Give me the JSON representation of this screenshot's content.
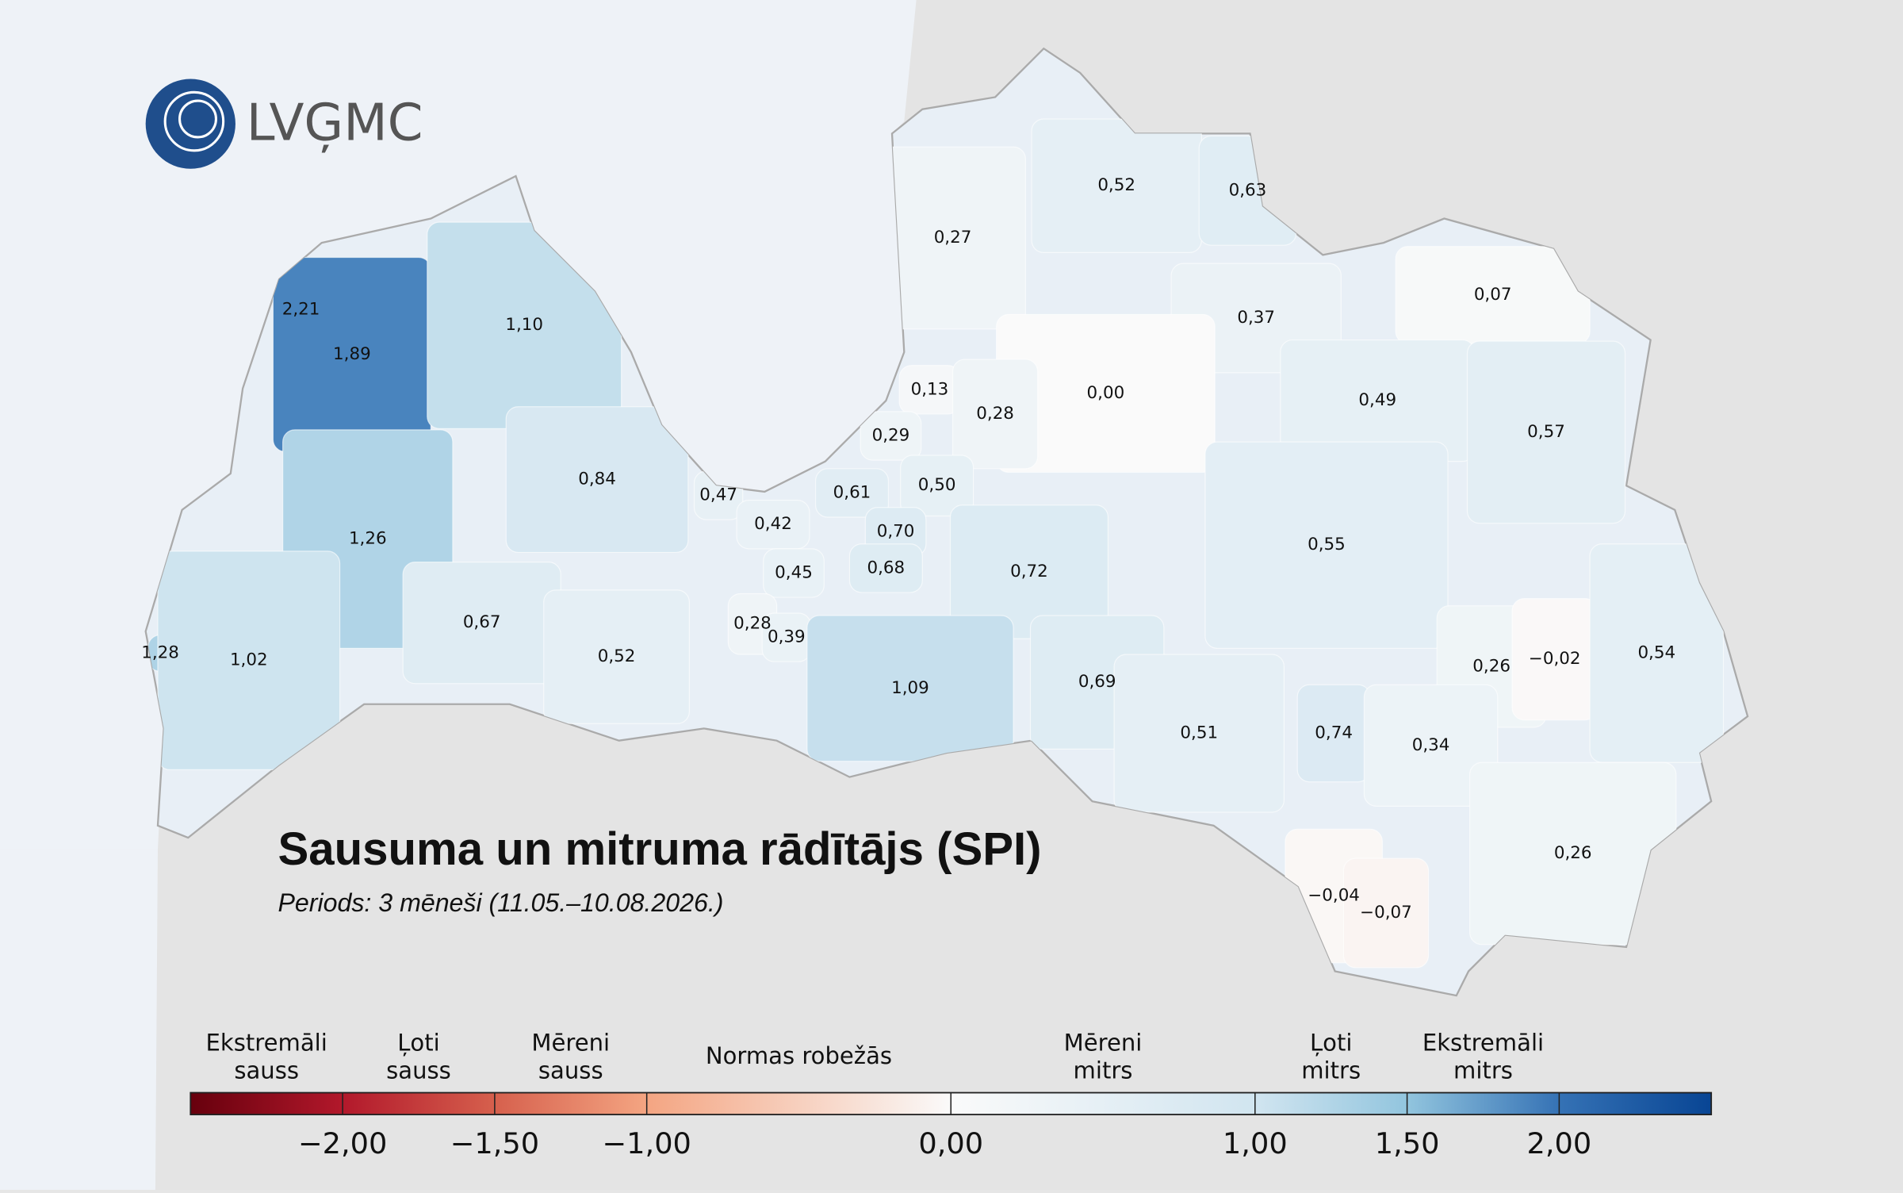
{
  "logo": "LVĢMC",
  "title": "Sausuma un mitruma rādītājs (SPI)",
  "subtitle": "Periods: 3 mēneši (11.05.–10.08.2026.)",
  "regions": [
    {
      "value": 0.52,
      "label": "0,52"
    },
    {
      "value": 0.63,
      "label": "0,63"
    },
    {
      "value": 0.27,
      "label": "0,27"
    },
    {
      "value": 0.07,
      "label": "0,07"
    },
    {
      "value": 0.37,
      "label": "0,37"
    },
    {
      "value": 2.21,
      "label": "2,21"
    },
    {
      "value": 1.89,
      "label": "1,89"
    },
    {
      "value": 1.1,
      "label": "1,10"
    },
    {
      "value": 0.13,
      "label": "0,13"
    },
    {
      "value": 0.0,
      "label": "0,00"
    },
    {
      "value": 0.28,
      "label": "0,28"
    },
    {
      "value": 0.49,
      "label": "0,49"
    },
    {
      "value": 0.57,
      "label": "0,57"
    },
    {
      "value": 0.29,
      "label": "0,29"
    },
    {
      "value": 0.84,
      "label": "0,84"
    },
    {
      "value": 0.47,
      "label": "0,47"
    },
    {
      "value": 0.61,
      "label": "0,61"
    },
    {
      "value": 0.5,
      "label": "0,50"
    },
    {
      "value": 0.42,
      "label": "0,42"
    },
    {
      "value": 0.7,
      "label": "0,70"
    },
    {
      "value": 1.26,
      "label": "1,26"
    },
    {
      "value": 0.55,
      "label": "0,55"
    },
    {
      "value": 0.45,
      "label": "0,45"
    },
    {
      "value": 0.68,
      "label": "0,68"
    },
    {
      "value": 0.72,
      "label": "0,72"
    },
    {
      "value": 0.67,
      "label": "0,67"
    },
    {
      "value": 0.28,
      "label": "0,28"
    },
    {
      "value": 0.39,
      "label": "0,39"
    },
    {
      "value": 0.52,
      "label": "0,52"
    },
    {
      "value": 1.28,
      "label": "1,28"
    },
    {
      "value": 1.02,
      "label": "1,02"
    },
    {
      "value": 0.26,
      "label": "0,26"
    },
    {
      "value": -0.02,
      "label": "−0,02"
    },
    {
      "value": 0.54,
      "label": "0,54"
    },
    {
      "value": 0.69,
      "label": "0,69"
    },
    {
      "value": 1.09,
      "label": "1,09"
    },
    {
      "value": 0.51,
      "label": "0,51"
    },
    {
      "value": 0.74,
      "label": "0,74"
    },
    {
      "value": 0.34,
      "label": "0,34"
    },
    {
      "value": 0.26,
      "label": "0,26"
    },
    {
      "value": -0.04,
      "label": "−0,04"
    },
    {
      "value": -0.07,
      "label": "−0,07"
    }
  ],
  "legend": {
    "range": [
      -2.5,
      2.5
    ],
    "ticks": [
      {
        "value": -2,
        "label": "−2,00"
      },
      {
        "value": -1.5,
        "label": "−1,50"
      },
      {
        "value": -1,
        "label": "−1,00"
      },
      {
        "value": 0,
        "label": "0,00"
      },
      {
        "value": 1,
        "label": "1,00"
      },
      {
        "value": 1.5,
        "label": "1,50"
      },
      {
        "value": 2,
        "label": "2,00"
      }
    ],
    "classes": [
      [
        "Ekstremāli",
        "sauss"
      ],
      [
        "Ļoti",
        "sauss"
      ],
      [
        "Mēreni",
        "sauss"
      ],
      [
        "Normas robežās"
      ],
      [
        "Mēreni",
        "mitrs"
      ],
      [
        "Ļoti",
        "mitrs"
      ],
      [
        "Ekstremāli",
        "mitrs"
      ]
    ]
  }
}
